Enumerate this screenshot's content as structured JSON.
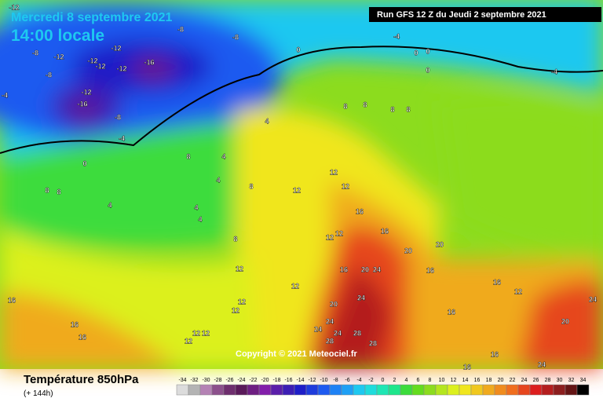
{
  "header": {
    "title": "Mercredi 8 septembre 2021",
    "subtitle": "14:00 locale",
    "run": "Run GFS 12 Z du Jeudi 2 septembre 2021",
    "copyright": "Copyright © 2021 Meteociel.fr"
  },
  "footer": {
    "title": "Température 850hPa",
    "lead": "(+ 144h)"
  },
  "scale": {
    "labels": [
      -34,
      -32,
      -30,
      -28,
      -26,
      -24,
      -22,
      -20,
      -18,
      -16,
      -14,
      -12,
      -10,
      -8,
      -6,
      -4,
      -2,
      0,
      2,
      4,
      6,
      8,
      10,
      12,
      14,
      16,
      18,
      20,
      22,
      24,
      26,
      28,
      30,
      32,
      34
    ],
    "colors": [
      "#dcdcdc",
      "#b4b4b4",
      "#b482b4",
      "#8c508c",
      "#6e2e6e",
      "#5a1a5a",
      "#6e1e82",
      "#821eaa",
      "#5a1eaa",
      "#3c1eb4",
      "#1e1ec8",
      "#1e3cdc",
      "#1e5af0",
      "#1e82f5",
      "#1ea0f5",
      "#1ec8f0",
      "#1edcdc",
      "#1ee6b4",
      "#1ee68c",
      "#3cdc3c",
      "#64dc1e",
      "#8cdc1e",
      "#b4e61e",
      "#dcf01e",
      "#f0e61e",
      "#f0c81e",
      "#f0aa1e",
      "#f08c1e",
      "#f06e1e",
      "#e6461e",
      "#dc1e1e",
      "#b41e1e",
      "#8c1e1e",
      "#641414",
      "#000000"
    ]
  },
  "map": {
    "labels": [
      -12,
      -8,
      -8,
      -8,
      -12,
      -12,
      -12,
      -12,
      -12,
      -16,
      -8,
      -12,
      -16,
      -8,
      -4,
      -4,
      0,
      -4,
      0,
      0,
      0,
      -4,
      0,
      4,
      8,
      8,
      8,
      8,
      8,
      4,
      4,
      8,
      12,
      12,
      12,
      8,
      8,
      4,
      4,
      4,
      8,
      16,
      12,
      12,
      20,
      20,
      16,
      20,
      24,
      12,
      12,
      16,
      16,
      16,
      20,
      24,
      24,
      24,
      24,
      28,
      28,
      28,
      16,
      16,
      16,
      16,
      12,
      12,
      12,
      20,
      24,
      24,
      16,
      16,
      12,
      12,
      12
    ]
  }
}
